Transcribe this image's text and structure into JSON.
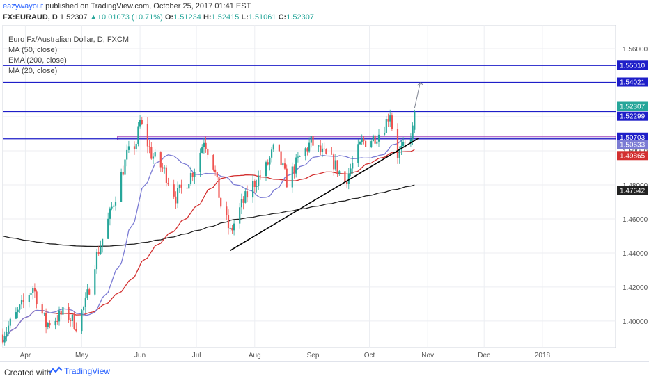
{
  "header": {
    "author": "eazywayout",
    "published": " published on TradingView.com, October 25, 2017 01:41 EST"
  },
  "quote": {
    "symbol": "FX:EURAUD, D",
    "last": "1.52307",
    "change": "+0.01073 (+0.71%)",
    "open_label": "O:",
    "open": "1.51234",
    "high_label": "H:",
    "high": "1.52415",
    "low_label": "L:",
    "low": "1.51061",
    "close_label": "C:",
    "close": "1.52307"
  },
  "legend": {
    "title": "Euro Fx/Australian Dollar, D, FXCM",
    "ma50": "MA (50, close)",
    "ema200": "EMA (200, close)",
    "ma20": "MA (20, close)"
  },
  "footer": {
    "created": "Created with",
    "brand": "TradingView"
  },
  "colors": {
    "up": "#26a69a",
    "down": "#ef5350",
    "level": "#1e1ec8",
    "zone": "#b39ddb",
    "ma20": "#7b7bd4",
    "ma50": "#d32f2f",
    "ema200": "#222222",
    "grid": "#eceef2"
  },
  "chart_data": {
    "type": "candlestick",
    "x_ticks": [
      "Apr",
      "May",
      "Jun",
      "Jul",
      "Aug",
      "Sep",
      "Oct",
      "Nov",
      "Dec",
      "2018"
    ],
    "y_ticks": [
      "1.56000",
      "1.54000",
      "1.52000",
      "1.50000",
      "1.48000",
      "1.46000",
      "1.44000",
      "1.42000",
      "1.40000"
    ],
    "ylim": [
      1.382,
      1.569
    ],
    "horizontal_levels": [
      1.5501,
      1.54021,
      1.52307,
      1.50703
    ],
    "support_zone": [
      1.5063,
      1.5085
    ],
    "price_labels": [
      {
        "text": "1.55010",
        "value": 1.5501,
        "bg": "#1e1ec8"
      },
      {
        "text": "1.54021",
        "value": 1.54021,
        "bg": "#1e1ec8"
      },
      {
        "text": "1.52307",
        "value": 1.52307,
        "bg": "#26a69a"
      },
      {
        "text": "1.52299",
        "value": 1.52299,
        "bg": "#1e1ec8"
      },
      {
        "text": "1.50703",
        "value": 1.50703,
        "bg": "#1e1ec8"
      },
      {
        "text": "1.50633",
        "value": 1.50633,
        "bg": "#7b7bd4"
      },
      {
        "text": "1.49865",
        "value": 1.49865,
        "bg": "#d32f2f"
      },
      {
        "text": "1.47642",
        "value": 1.47642,
        "bg": "#222222"
      }
    ],
    "trendline": {
      "from_date": "2017-07-19",
      "from_price": 1.4415,
      "to_date": "2017-10-27",
      "to_price": 1.5073
    },
    "arrow": {
      "from_date": "2017-10-25",
      "from_price": 1.525,
      "to_date": "2017-10-28",
      "to_price": 1.54
    }
  }
}
